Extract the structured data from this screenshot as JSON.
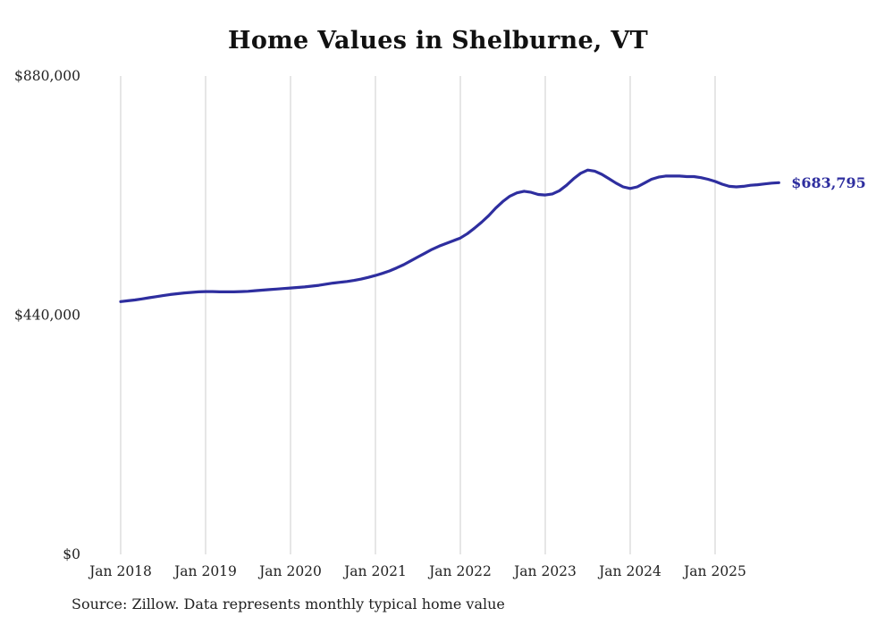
{
  "title": "Home Values in Shelburne, VT",
  "source": "Source: Zillow. Data represents monthly typical home value",
  "end_label": "$683,795",
  "colors": {
    "line": "#2e2e9f",
    "grid": "#cccccc",
    "text": "#222222"
  },
  "chart_data": {
    "type": "line",
    "title": "Home Values in Shelburne, VT",
    "xlabel": "",
    "ylabel": "",
    "ylim": [
      0,
      880000
    ],
    "grid": "vertical-only",
    "legend": "none",
    "x_start": "2018-01",
    "x_interval": "monthly",
    "x_tick_labels": [
      "Jan 2018",
      "Jan 2019",
      "Jan 2020",
      "Jan 2021",
      "Jan 2022",
      "Jan 2023",
      "Jan 2024",
      "Jan 2025"
    ],
    "y_ticks": [
      0,
      440000,
      880000
    ],
    "y_tick_labels": [
      "$0",
      "$440,000",
      "$880,000"
    ],
    "final_value": 683795,
    "series": [
      {
        "name": "Typical home value",
        "values": [
          465000,
          466500,
          468000,
          470000,
          472000,
          474000,
          476000,
          478000,
          479500,
          481000,
          482000,
          483000,
          483500,
          483500,
          483000,
          483000,
          483000,
          483500,
          484000,
          485000,
          486000,
          487000,
          488000,
          489000,
          490000,
          491000,
          492000,
          493500,
          495000,
          497000,
          499000,
          500500,
          502000,
          504000,
          506500,
          509500,
          513000,
          517000,
          521500,
          527000,
          533000,
          540000,
          547000,
          554000,
          561000,
          567000,
          572000,
          577000,
          582000,
          590000,
          600000,
          611000,
          623000,
          637000,
          649000,
          659000,
          665000,
          668000,
          666000,
          662000,
          661000,
          663000,
          669000,
          679000,
          691000,
          701000,
          707000,
          705000,
          699000,
          691000,
          683000,
          676000,
          673000,
          676000,
          683000,
          690000,
          694000,
          696000,
          696000,
          696000,
          695000,
          695000,
          693000,
          690000,
          686000,
          681000,
          677000,
          676000,
          677000,
          679000,
          680000,
          681500,
          683000,
          683795
        ]
      }
    ]
  }
}
